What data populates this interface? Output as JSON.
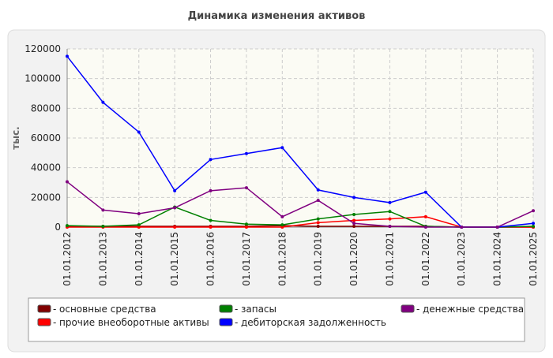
{
  "chart_data": {
    "type": "line",
    "title": "Динамика изменения активов",
    "ylabel": "тыс.",
    "categories": [
      "01.01.2012",
      "01.01.2013",
      "01.01.2014",
      "01.01.2015",
      "01.01.2016",
      "01.01.2017",
      "01.01.2018",
      "01.01.2019",
      "01.01.2020",
      "01.01.2021",
      "01.01.2022",
      "01.01.2023",
      "01.01.2024",
      "01.01.2025"
    ],
    "series": [
      {
        "name": "основные средства",
        "color": "#800000",
        "values": [
          500,
          500,
          500,
          500,
          500,
          500,
          1000,
          500,
          500,
          500,
          500,
          0,
          0,
          0
        ]
      },
      {
        "name": "прочие внеоборотные активы",
        "color": "#ff0000",
        "values": [
          0,
          0,
          0,
          0,
          0,
          0,
          0,
          3000,
          4500,
          5500,
          7000,
          0,
          0,
          0
        ]
      },
      {
        "name": "запасы",
        "color": "#008000",
        "values": [
          1000,
          500,
          1500,
          13500,
          4500,
          2000,
          1500,
          5500,
          8500,
          10500,
          500,
          0,
          0,
          500
        ]
      },
      {
        "name": "дебиторская задолженность",
        "color": "#0000ff",
        "values": [
          115000,
          84000,
          64000,
          24500,
          45500,
          49500,
          53500,
          25000,
          20000,
          16500,
          23500,
          0,
          0,
          2500
        ]
      },
      {
        "name": "денежные средства",
        "color": "#800080",
        "values": [
          30500,
          11500,
          9000,
          13000,
          24500,
          26500,
          7000,
          18000,
          2500,
          500,
          0,
          0,
          0,
          11000
        ]
      }
    ],
    "ylim": [
      0,
      120000
    ],
    "yticks": [
      0,
      20000,
      40000,
      60000,
      80000,
      100000,
      120000
    ],
    "grid": true,
    "legend": "bottom"
  }
}
